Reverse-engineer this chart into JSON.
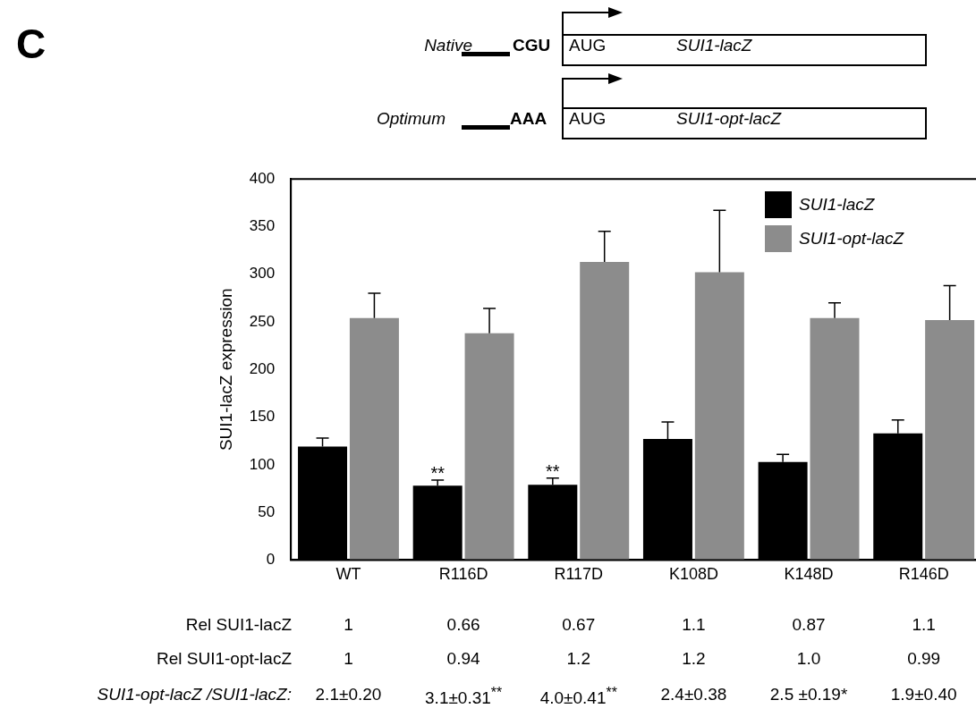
{
  "chart_data": {
    "type": "bar",
    "ylabel": "SUI1-lacZ expression",
    "categories": [
      "WT",
      "R116D",
      "R117D",
      "K108D",
      "K148D",
      "R146D"
    ],
    "series": [
      {
        "name": "SUI1-lacZ",
        "color": "#000000",
        "values": [
          119,
          78,
          79,
          127,
          103,
          133
        ],
        "errors": [
          [
            119,
            128
          ],
          [
            78,
            84
          ],
          [
            79,
            86
          ],
          [
            127,
            145
          ],
          [
            103,
            111
          ],
          [
            133,
            147
          ]
        ]
      },
      {
        "name": "SUI1-opt-lacZ",
        "color": "#8c8c8c",
        "values": [
          254,
          238,
          313,
          302,
          254,
          252
        ],
        "errors": [
          [
            254,
            280
          ],
          [
            238,
            264
          ],
          [
            313,
            345
          ],
          [
            302,
            367
          ],
          [
            254,
            270
          ],
          [
            252,
            288
          ]
        ]
      }
    ],
    "ylim": [
      0,
      400
    ],
    "yticks": [
      0,
      50,
      100,
      150,
      200,
      250,
      300,
      350,
      400
    ],
    "grid": false,
    "legend": "top right",
    "annotations": [
      {
        "text": "**",
        "x": "R116D",
        "y": 90
      },
      {
        "text": "**",
        "x": "R117D",
        "y": 92
      },
      "C",
      "Native",
      "CGU",
      "AUG",
      "SUI1-lacZ",
      "Optimum",
      "AAA",
      "AUG",
      "SUI1-opt-lacZ",
      "Rel SUI1-lacZ",
      "1",
      "0.66",
      "0.67",
      "1.1",
      "0.87",
      "1.1",
      "Rel SUI1-opt-lacZ",
      "1",
      "0.94",
      "1.2",
      "1.2",
      "1.0",
      "0.99",
      "SUI1-opt-lacZ /SUI1-lacZ:",
      "2.1±0.20",
      "3.1±0.31$^{**}$",
      "4.0±0.41$^{**}$",
      "2.4±0.38",
      "2.5 ±0.19*",
      "1.9±0.40"
    ]
  }
}
